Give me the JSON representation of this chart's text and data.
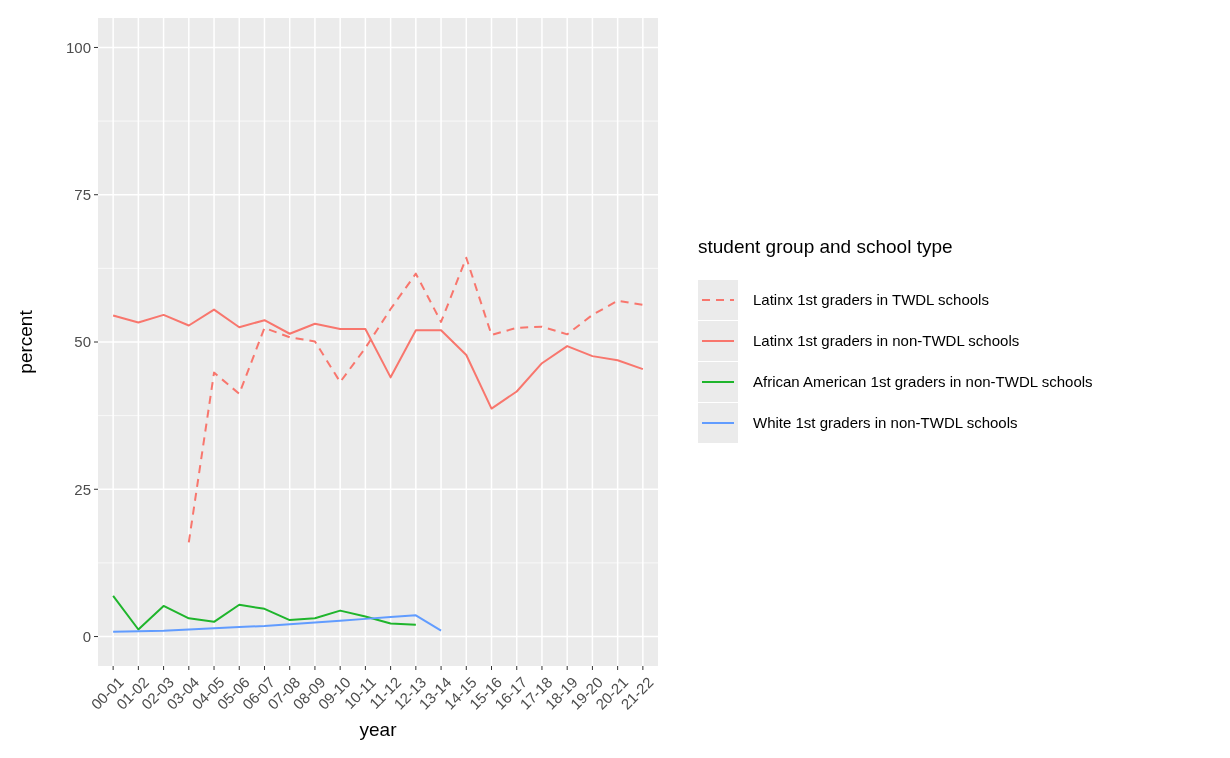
{
  "chart_data": {
    "type": "line",
    "xlabel": "year",
    "ylabel": "percent",
    "legend_title": "student group and school type",
    "legend": "right",
    "grid": true,
    "categories": [
      "00-01",
      "01-02",
      "02-03",
      "03-04",
      "04-05",
      "05-06",
      "06-07",
      "07-08",
      "08-09",
      "09-10",
      "10-11",
      "11-12",
      "12-13",
      "13-14",
      "14-15",
      "15-16",
      "16-17",
      "17-18",
      "18-19",
      "19-20",
      "20-21",
      "21-22"
    ],
    "ylim": [
      -5,
      105
    ],
    "yticks": [
      0,
      25,
      50,
      75,
      100
    ],
    "series": [
      {
        "name": "Latinx 1st graders in TWDL schools",
        "color": "#f8766d",
        "line_style": "dashed",
        "values": [
          null,
          null,
          null,
          16,
          44.8,
          41.2,
          52.4,
          50.8,
          50.1,
          43.2,
          49,
          55.6,
          61.6,
          53.4,
          64.3,
          51.2,
          52.4,
          52.6,
          51.3,
          54.6,
          57,
          56.3
        ]
      },
      {
        "name": "Latinx 1st graders in non-TWDL schools",
        "color": "#f8766d",
        "line_style": "solid",
        "values": [
          54.5,
          53.3,
          54.6,
          52.8,
          55.5,
          52.5,
          53.7,
          51.4,
          53.1,
          52.2,
          52.2,
          44,
          52,
          52,
          47.8,
          38.7,
          41.6,
          46.4,
          49.3,
          47.6,
          46.9,
          45.4
        ]
      },
      {
        "name": "African American 1st graders in non-TWDL schools",
        "color": "#1fb52c",
        "line_style": "solid",
        "values": [
          6.9,
          1.2,
          5.2,
          3.1,
          2.5,
          5.4,
          4.7,
          2.8,
          3.1,
          4.4,
          3.4,
          2.2,
          2,
          null,
          null,
          null,
          null,
          null,
          null,
          null,
          null,
          null
        ]
      },
      {
        "name": "White 1st graders in non-TWDL schools",
        "color": "#619cff",
        "line_style": "solid",
        "values": [
          0.8,
          0.9,
          1,
          1.2,
          1.4,
          1.6,
          1.8,
          2.1,
          2.4,
          2.7,
          3,
          3.3,
          3.6,
          1,
          null,
          null,
          null,
          null,
          null,
          null,
          null,
          null
        ]
      }
    ]
  }
}
